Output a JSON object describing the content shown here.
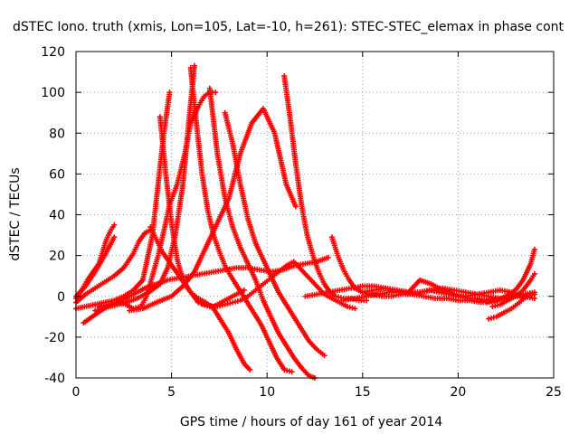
{
  "chart_data": {
    "type": "scatter",
    "title": "dSTEC Iono. truth (xmis, Lon=105, Lat=-10, h=261): STEC-STEC_elemax in phase cont",
    "xlabel": "GPS time / hours of day 161 of year 2014",
    "ylabel": "dSTEC  / TECUs",
    "xlim": [
      0,
      25
    ],
    "ylim": [
      -40,
      120
    ],
    "xticks": [
      0,
      5,
      10,
      15,
      20,
      25
    ],
    "yticks": [
      -40,
      -20,
      0,
      20,
      40,
      60,
      80,
      100,
      120
    ],
    "grid": true,
    "marker": "+",
    "color": "#ff0000",
    "series": [
      {
        "name": "s1",
        "x": [
          0.0,
          0.3,
          0.6,
          0.9,
          1.2,
          1.4,
          1.6,
          1.8,
          2.0
        ],
        "y": [
          -1,
          3,
          8,
          12,
          16,
          22,
          28,
          32,
          35
        ]
      },
      {
        "name": "s2",
        "x": [
          0.0,
          0.5,
          1.0,
          1.5,
          2.0
        ],
        "y": [
          0,
          5,
          12,
          20,
          29
        ]
      },
      {
        "name": "s3",
        "x": [
          0.0,
          1.0,
          2.0,
          2.5,
          3.0,
          3.5,
          4.0,
          4.3,
          4.6,
          4.9
        ],
        "y": [
          -6,
          -4,
          -2,
          0,
          3,
          8,
          30,
          55,
          80,
          100
        ]
      },
      {
        "name": "s4",
        "x": [
          0.4,
          1.0,
          1.6,
          2.2,
          2.6,
          3.0,
          3.4,
          3.7,
          4.0,
          4.3,
          4.6,
          4.9,
          5.3,
          5.7,
          6.0,
          6.4,
          6.7,
          7.0,
          7.3
        ],
        "y": [
          -13,
          -9,
          -5,
          -3,
          -4,
          -6,
          -5,
          0,
          10,
          20,
          32,
          45,
          55,
          70,
          85,
          93,
          98,
          100,
          100
        ]
      },
      {
        "name": "s5",
        "x": [
          0.0,
          0.5,
          1.0,
          1.5,
          2.0,
          2.5,
          3.0,
          3.3,
          3.6,
          4.0
        ],
        "y": [
          -3,
          1,
          4,
          7,
          10,
          14,
          21,
          27,
          31,
          33
        ]
      },
      {
        "name": "s6",
        "x": [
          1.0,
          1.8,
          2.6,
          3.2,
          3.8,
          4.4,
          4.8,
          5.2,
          5.6,
          5.9,
          6.2
        ],
        "y": [
          -7,
          -5,
          -3,
          -1,
          2,
          6,
          14,
          30,
          55,
          85,
          113
        ]
      },
      {
        "name": "s7",
        "x": [
          2.8,
          3.5,
          4.2,
          5.0,
          5.6,
          6.2,
          6.6,
          7.0,
          7.5,
          8.0,
          8.6,
          9.2,
          9.8,
          10.4,
          11.0,
          11.5
        ],
        "y": [
          -7,
          -6,
          -3,
          0,
          5,
          12,
          20,
          28,
          38,
          48,
          70,
          85,
          92,
          80,
          55,
          44
        ]
      },
      {
        "name": "s8",
        "x": [
          4.4,
          4.7,
          5.0,
          5.3,
          5.6,
          6.0,
          6.4,
          6.8,
          7.2,
          7.6,
          8.0,
          8.4,
          8.8
        ],
        "y": [
          88,
          60,
          36,
          18,
          8,
          2,
          -3,
          -4,
          -5,
          -3,
          -1,
          1,
          3
        ]
      },
      {
        "name": "s9",
        "x": [
          3.9,
          4.2,
          4.5,
          4.8,
          5.1,
          5.4,
          5.7,
          6.0,
          6.4,
          6.8,
          7.2,
          7.6,
          8.0,
          8.4,
          8.8,
          9.1
        ],
        "y": [
          34,
          28,
          22,
          18,
          14,
          10,
          6,
          2,
          -1,
          -3,
          -6,
          -12,
          -18,
          -26,
          -33,
          -36
        ]
      },
      {
        "name": "s10",
        "x": [
          6.0,
          6.3,
          6.6,
          6.9,
          7.2,
          7.5,
          7.8,
          8.1,
          8.5,
          8.9,
          9.3,
          9.7,
          10.1,
          10.5,
          10.9,
          11.3
        ],
        "y": [
          112,
          85,
          60,
          42,
          30,
          22,
          15,
          10,
          4,
          -2,
          -8,
          -14,
          -22,
          -30,
          -36,
          -37
        ]
      },
      {
        "name": "s11",
        "x": [
          7.0,
          7.4,
          7.8,
          8.2,
          8.6,
          9.0,
          9.4,
          9.8,
          10.2,
          10.6,
          11.0,
          11.4,
          11.8,
          12.2,
          12.5
        ],
        "y": [
          102,
          70,
          48,
          34,
          24,
          16,
          8,
          -2,
          -10,
          -18,
          -24,
          -30,
          -35,
          -39,
          -40
        ]
      },
      {
        "name": "s12",
        "x": [
          7.8,
          8.2,
          8.6,
          9.0,
          9.4,
          9.8,
          10.2,
          10.6,
          11.0,
          11.4,
          11.8,
          12.2,
          12.6,
          13.0
        ],
        "y": [
          90,
          75,
          55,
          38,
          26,
          18,
          10,
          2,
          -4,
          -10,
          -16,
          -22,
          -26,
          -29
        ]
      },
      {
        "name": "s13",
        "x": [
          10.9,
          11.2,
          11.5,
          11.8,
          12.1,
          12.4,
          12.7,
          13.0,
          13.3,
          13.6,
          14.0,
          14.4,
          14.8,
          15.2
        ],
        "y": [
          108,
          88,
          65,
          45,
          30,
          20,
          12,
          6,
          2,
          0,
          -1,
          -1,
          -2,
          -2
        ]
      },
      {
        "name": "s14",
        "x": [
          6.6,
          7.0,
          7.4,
          7.8,
          8.2,
          8.6,
          9.0,
          9.4,
          9.8,
          10.2,
          10.6,
          11.0,
          11.4,
          11.8,
          12.2,
          12.6,
          13.0,
          13.4,
          13.8,
          14.2,
          14.6
        ],
        "y": [
          -4,
          -5,
          -5,
          -4,
          -3,
          -2,
          0,
          3,
          6,
          9,
          12,
          15,
          17,
          13,
          9,
          5,
          1,
          -1,
          -3,
          -5,
          -6
        ]
      },
      {
        "name": "s15",
        "x": [
          1.2,
          1.8,
          2.4,
          3.0,
          3.6,
          4.2,
          4.8,
          5.4,
          6.0,
          6.6,
          7.2,
          7.8,
          8.4,
          9.0,
          9.6,
          10.2,
          10.8,
          11.4,
          12.0,
          12.6,
          13.2
        ],
        "y": [
          -5,
          -4,
          -2,
          1,
          4,
          6,
          8,
          9,
          10,
          11,
          12,
          13,
          14,
          14,
          13,
          12,
          13,
          15,
          16,
          17,
          19
        ]
      },
      {
        "name": "s16",
        "x": [
          13.4,
          13.7,
          14.0,
          14.3,
          14.6,
          15.0,
          15.5,
          16.0,
          16.5,
          17.0,
          17.5,
          18.0,
          18.5,
          19.0,
          19.5,
          20.0,
          20.5,
          21.0,
          21.5,
          22.0
        ],
        "y": [
          29,
          20,
          13,
          8,
          4,
          2,
          1,
          0,
          0,
          1,
          1,
          2,
          3,
          2,
          1,
          0,
          -1,
          -1,
          -2,
          -2
        ]
      },
      {
        "name": "s17",
        "x": [
          12.0,
          12.6,
          13.2,
          13.8,
          14.4,
          15.0,
          15.6,
          16.2,
          16.8,
          17.4,
          18.0,
          18.6,
          19.2,
          19.8,
          20.4,
          21.0,
          21.6,
          22.2,
          22.8,
          23.4,
          24.0
        ],
        "y": [
          0,
          1,
          2,
          3,
          4,
          5,
          5,
          4,
          3,
          2,
          2,
          3,
          4,
          3,
          2,
          1,
          0,
          -1,
          0,
          1,
          2
        ]
      },
      {
        "name": "s18",
        "x": [
          14.0,
          14.6,
          15.2,
          15.8,
          16.4,
          17.0,
          17.6,
          18.2,
          18.8,
          19.4,
          20.0,
          20.6,
          21.2,
          21.8,
          22.4,
          23.0,
          23.6,
          24.0
        ],
        "y": [
          -2,
          -1,
          0,
          1,
          2,
          2,
          1,
          0,
          -1,
          -1,
          -2,
          -2,
          -3,
          -2,
          -1,
          0,
          0,
          1
        ]
      },
      {
        "name": "s19",
        "x": [
          15.0,
          15.6,
          16.2,
          16.8,
          17.4,
          18.0,
          18.6,
          19.2,
          19.8,
          20.4,
          21.0,
          21.6,
          22.2,
          22.8,
          23.4,
          24.0
        ],
        "y": [
          2,
          3,
          4,
          3,
          2,
          8,
          6,
          3,
          1,
          0,
          1,
          2,
          3,
          2,
          0,
          -1
        ]
      },
      {
        "name": "s20",
        "x": [
          21.6,
          22.0,
          22.4,
          22.8,
          23.2,
          23.6,
          24.0
        ],
        "y": [
          -11,
          -10,
          -8,
          -6,
          -3,
          0,
          1
        ]
      },
      {
        "name": "s21",
        "x": [
          21.8,
          22.2,
          22.6,
          23.0,
          23.4,
          23.8,
          24.0
        ],
        "y": [
          -5,
          -4,
          -2,
          0,
          3,
          8,
          11
        ]
      },
      {
        "name": "s22",
        "x": [
          21.5,
          22.0,
          22.5,
          23.0,
          23.4,
          23.8,
          24.0
        ],
        "y": [
          -3,
          -2,
          0,
          3,
          8,
          16,
          23
        ]
      }
    ]
  }
}
